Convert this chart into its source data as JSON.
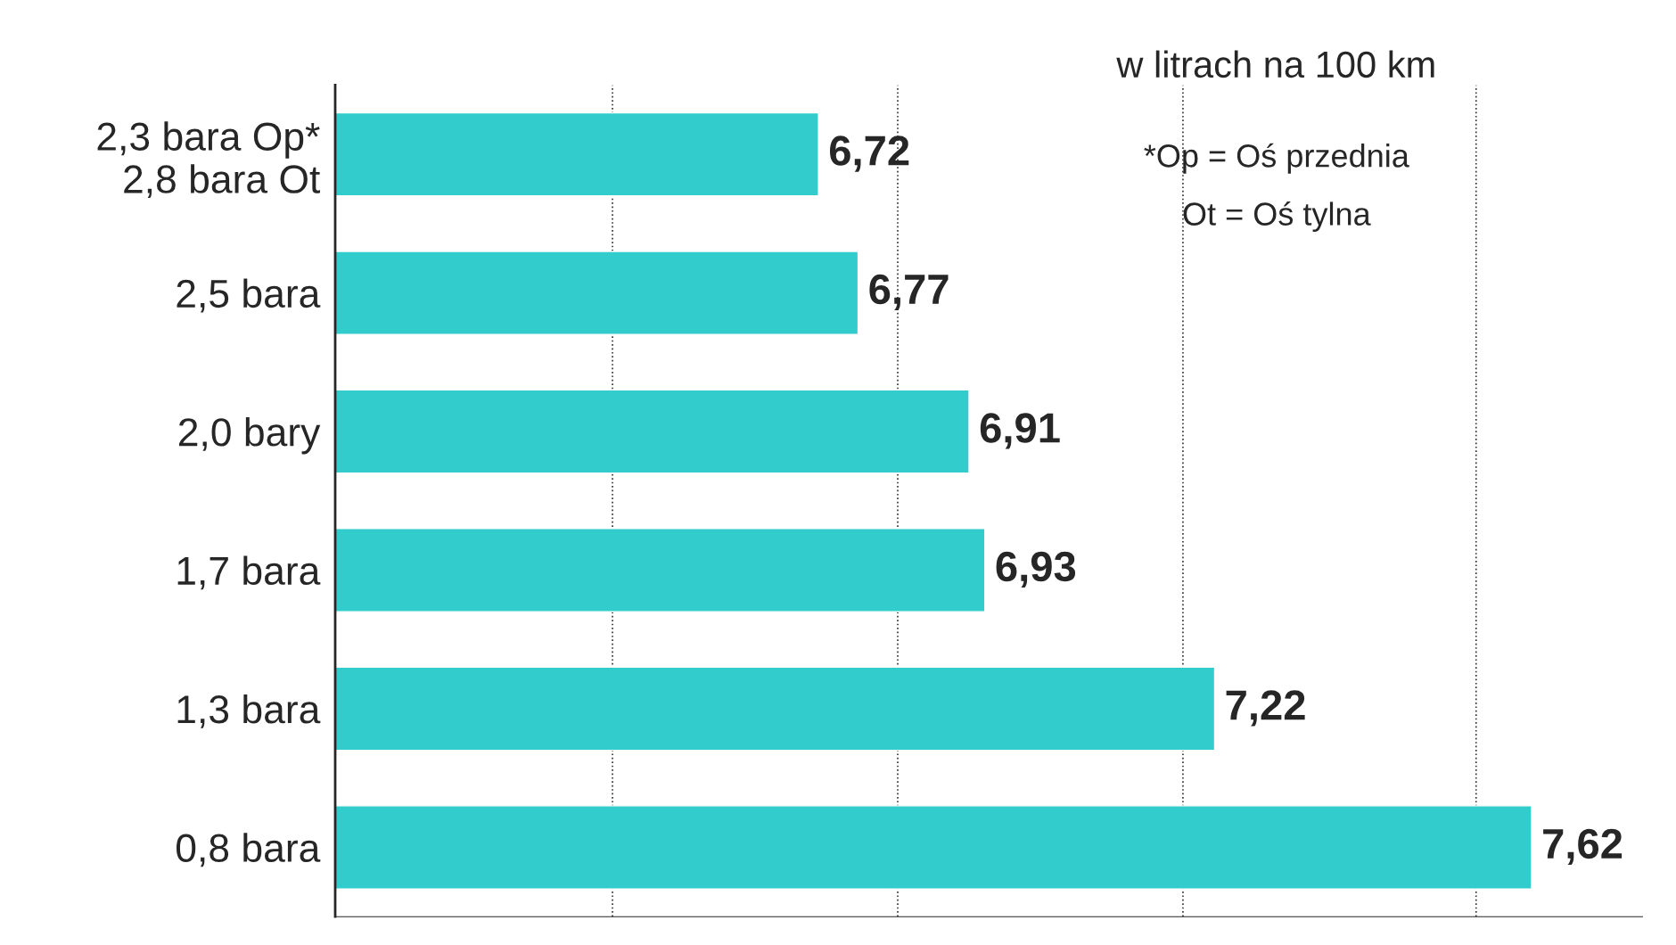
{
  "chart_data": {
    "type": "bar",
    "orientation": "horizontal",
    "subtitle": "w litrach na 100 km",
    "categories": [
      "2,3 bara Op*\n2,8 bara Ot",
      "2,5 bara",
      "2,0 bary",
      "1,7 bara",
      "1,3 bara",
      "0,8 bara"
    ],
    "values": [
      6.72,
      6.77,
      6.91,
      6.93,
      7.22,
      7.62
    ],
    "value_labels": [
      "6,72",
      "6,77",
      "6,91",
      "6,93",
      "7,22",
      "7,62"
    ],
    "color": "#33cccc",
    "xlim": [
      6.11,
      7.76
    ],
    "xticks": [
      {
        "value": 6.46,
        "label": null
      },
      {
        "value": 6.82,
        "label": null
      },
      {
        "value": 7.18,
        "label": null
      },
      {
        "value": 7.55,
        "label": null
      }
    ],
    "grid": "x",
    "annotations": [
      "*Op = Oś przednia",
      "Ot = Oś tylna"
    ]
  }
}
